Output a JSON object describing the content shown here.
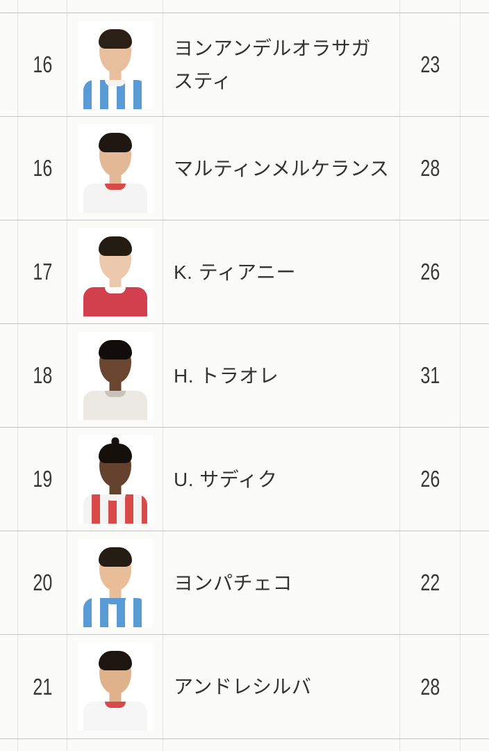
{
  "table": {
    "rows": [
      {
        "number": "16",
        "name": "ヨンアンデルオラサガスティ",
        "age": "23",
        "photo": {
          "skin": "#e8bf9d",
          "hair": "#2b2016",
          "shirt1": "#5b9bd5",
          "shirt2": "#ffffff",
          "collar": "#f2f2f2"
        }
      },
      {
        "number": "16",
        "name": "マルティンメルケランス",
        "age": "28",
        "photo": {
          "skin": "#e3b896",
          "hair": "#1f1812",
          "shirt1": "#f4f4f4",
          "shirt2": "#f4f4f4",
          "collar": "#d84a4a"
        }
      },
      {
        "number": "17",
        "name": "K. ティアニー",
        "age": "26",
        "photo": {
          "skin": "#ecc9ad",
          "hair": "#241b13",
          "shirt1": "#d2404e",
          "shirt2": "#d2404e",
          "collar": "#ffffff"
        }
      },
      {
        "number": "18",
        "name": "H. トラオレ",
        "age": "31",
        "photo": {
          "skin": "#6a4631",
          "hair": "#120d0a",
          "shirt1": "#ece9e4",
          "shirt2": "#ece9e4",
          "collar": "#c9c2b8"
        }
      },
      {
        "number": "19",
        "name": "U. サディク",
        "age": "26",
        "photo": {
          "skin": "#64422e",
          "hair": "#15100c",
          "shirt1": "#f3f3f3",
          "shirt2": "#d84a4a",
          "collar": "#f3f3f3",
          "tuft": "#15100c"
        }
      },
      {
        "number": "20",
        "name": "ヨンパチェコ",
        "age": "22",
        "photo": {
          "skin": "#e9bd97",
          "hair": "#251c13",
          "shirt1": "#5b9bd5",
          "shirt2": "#ffffff",
          "collar": "#5b9bd5"
        }
      },
      {
        "number": "21",
        "name": "アンドレシルバ",
        "age": "28",
        "photo": {
          "skin": "#dfb28c",
          "hair": "#1d150f",
          "shirt1": "#f6f6f6",
          "shirt2": "#f6f6f6",
          "collar": "#d84a4a"
        }
      }
    ]
  },
  "colors": {
    "background": "#fbfbfa",
    "grid_horizontal": "#c3c3c3",
    "grid_vertical": "#e2e2e2",
    "text": "#383838",
    "photo_background": "#ffffff"
  }
}
